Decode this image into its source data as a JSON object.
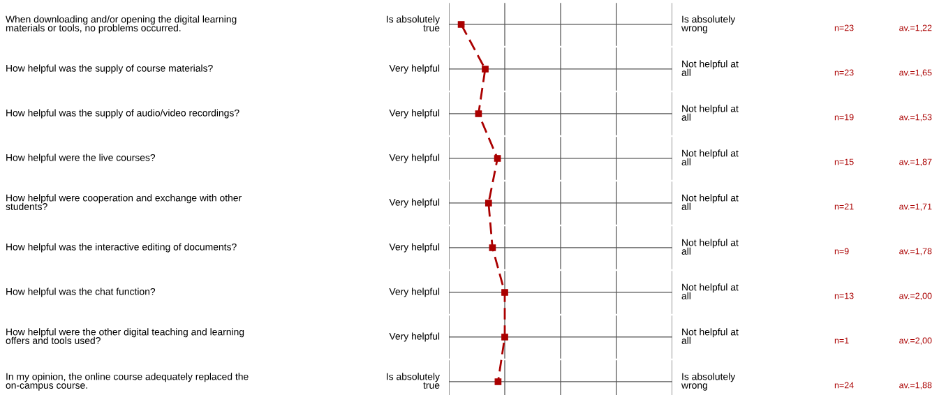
{
  "chart_data": {
    "type": "line",
    "orientation": "horizontal",
    "categories": [
      "When downloading and/or opening the digital learning\nmaterials or tools, no problems occurred.",
      "How helpful was the supply of course materials?",
      "How helpful was the supply of audio/video recordings?",
      "How helpful were the live courses?",
      "How helpful were cooperation and exchange with other\nstudents?",
      "How helpful was the interactive editing of documents?",
      "How helpful was the chat function?",
      "How helpful were the other digital teaching and learning\noffers and tools used?",
      "In my opinion, the online course adequately replaced the\non-campus course."
    ],
    "values": [
      1.22,
      1.65,
      1.53,
      1.87,
      1.71,
      1.78,
      2.0,
      2.0,
      1.88
    ],
    "value_labels": [
      "av.=1,22",
      "av.=1,65",
      "av.=1,53",
      "av.=1,87",
      "av.=1,71",
      "av.=1,78",
      "av.=2,00",
      "av.=2,00",
      "av.=1,88"
    ],
    "color": "#aa0000",
    "marker": "square",
    "line_style": "dashed",
    "xlim": [
      1,
      5
    ],
    "grid": "y",
    "tick_labels": "y",
    "annotations": [
      "Is absolutely\ntrue",
      "Is absolutely\nwrong",
      "n=23",
      "Very helpful",
      "Not helpful at\nall",
      "n=23",
      "Very helpful",
      "Not helpful at\nall",
      "n=19",
      "Very helpful",
      "Not helpful at\nall",
      "n=15",
      "Very helpful",
      "Not helpful at\nall",
      "n=21",
      "Very helpful",
      "Not helpful at\nall",
      "n=9",
      "Very helpful",
      "Not helpful at\nall",
      "n=13",
      "Very helpful",
      "Not helpful at\nall",
      "n=1",
      "Is absolutely\ntrue",
      "Is absolutely\nwrong",
      "n=24"
    ]
  }
}
